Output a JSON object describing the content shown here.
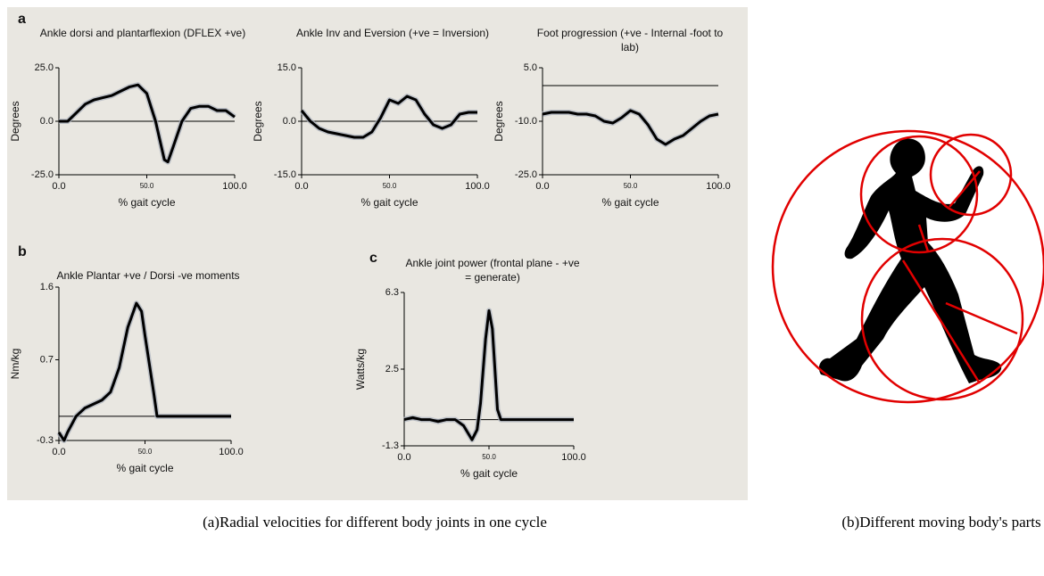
{
  "panel_labels": [
    "a",
    "b",
    "c"
  ],
  "chart_data": [
    {
      "type": "line",
      "title": [
        "Ankle dorsi and plantarflexion (DFLEX +ve)"
      ],
      "ylabel": "Degrees",
      "xlabel": "% gait cycle",
      "x": [
        0,
        5,
        10,
        15,
        20,
        25,
        30,
        35,
        40,
        45,
        50,
        55,
        60,
        62,
        65,
        70,
        75,
        80,
        85,
        90,
        95,
        100
      ],
      "values": [
        0,
        0,
        4,
        8,
        10,
        11,
        12,
        14,
        16,
        17,
        13,
        0,
        -18,
        -19,
        -12,
        0,
        6,
        7,
        7,
        5,
        5,
        2
      ],
      "color": "#000000",
      "zero_line": true,
      "xlim": [
        0,
        100
      ],
      "xticks": [
        {
          "value": 0,
          "label": "0.0"
        },
        {
          "value": 50,
          "label": "50.0"
        },
        {
          "value": 100,
          "label": "100.0"
        }
      ],
      "ylim": [
        -25,
        25
      ],
      "yticks": [
        {
          "value": 25,
          "label": "25.0"
        },
        {
          "value": 0,
          "label": "0.0"
        },
        {
          "value": -25,
          "label": "-25.0"
        }
      ]
    },
    {
      "type": "line",
      "title": [
        "Ankle Inv and Eversion (+ve = Inversion)"
      ],
      "ylabel": "Degrees",
      "xlabel": "% gait cycle",
      "x": [
        0,
        5,
        10,
        15,
        20,
        25,
        30,
        35,
        40,
        45,
        50,
        55,
        60,
        65,
        70,
        75,
        80,
        85,
        90,
        95,
        100
      ],
      "values": [
        3,
        0,
        -2,
        -3,
        -3.5,
        -4,
        -4.5,
        -4.5,
        -3,
        1,
        6,
        5,
        7,
        6,
        2,
        -1,
        -2,
        -1,
        2,
        2.5,
        2.5
      ],
      "color": "#000000",
      "zero_line": true,
      "xlim": [
        0,
        100
      ],
      "xticks": [
        {
          "value": 0,
          "label": "0.0"
        },
        {
          "value": 50,
          "label": "50.0"
        },
        {
          "value": 100,
          "label": "100.0"
        }
      ],
      "ylim": [
        -15,
        15
      ],
      "yticks": [
        {
          "value": 15,
          "label": "15.0"
        },
        {
          "value": 0,
          "label": "0.0"
        },
        {
          "value": -15,
          "label": "-15.0"
        }
      ]
    },
    {
      "type": "line",
      "title": [
        "Foot progression (+ve - Internal -foot to",
        "lab)"
      ],
      "ylabel": "Degrees",
      "xlabel": "% gait cycle",
      "x": [
        0,
        5,
        10,
        15,
        20,
        25,
        30,
        35,
        40,
        45,
        50,
        55,
        60,
        65,
        70,
        75,
        80,
        85,
        90,
        95,
        100
      ],
      "values": [
        -8,
        -7.5,
        -7.5,
        -7.5,
        -8,
        -8,
        -8.5,
        -10,
        -10.5,
        -9,
        -7,
        -8,
        -11,
        -15,
        -16.5,
        -15,
        -14,
        -12,
        -10,
        -8.5,
        -8
      ],
      "color": "#000000",
      "zero_line": true,
      "xlim": [
        0,
        100
      ],
      "xticks": [
        {
          "value": 0,
          "label": "0.0"
        },
        {
          "value": 50,
          "label": "50.0"
        },
        {
          "value": 100,
          "label": "100.0"
        }
      ],
      "ylim": [
        -25,
        5
      ],
      "yticks": [
        {
          "value": 5,
          "label": "5.0"
        },
        {
          "value": -10,
          "label": "-10.0"
        },
        {
          "value": -25,
          "label": "-25.0"
        }
      ]
    },
    {
      "type": "line",
      "title": [
        "Ankle Plantar +ve / Dorsi -ve moments"
      ],
      "ylabel": "Nm/kg",
      "xlabel": "% gait cycle",
      "x": [
        0,
        3,
        5,
        10,
        15,
        20,
        25,
        30,
        35,
        40,
        45,
        48,
        50,
        55,
        57,
        60,
        70,
        80,
        90,
        100
      ],
      "values": [
        -0.2,
        -0.3,
        -0.2,
        0,
        0.1,
        0.15,
        0.2,
        0.3,
        0.6,
        1.1,
        1.4,
        1.3,
        1.0,
        0.3,
        0,
        0,
        0,
        0,
        0,
        0
      ],
      "color": "#000000",
      "zero_line": true,
      "xlim": [
        0,
        100
      ],
      "xticks": [
        {
          "value": 0,
          "label": "0.0"
        },
        {
          "value": 50,
          "label": "50.0"
        },
        {
          "value": 100,
          "label": "100.0"
        }
      ],
      "ylim": [
        -0.3,
        1.6
      ],
      "yticks": [
        1.6,
        0.7,
        -0.3
      ]
    },
    {
      "type": "line",
      "title": [
        "Ankle joint power (frontal plane - +ve",
        "= generate)"
      ],
      "ylabel": "Watts/kg",
      "xlabel": "% gait cycle",
      "x": [
        0,
        5,
        10,
        15,
        20,
        25,
        30,
        35,
        40,
        43,
        45,
        48,
        50,
        52,
        55,
        57,
        60,
        70,
        80,
        90,
        100
      ],
      "values": [
        0,
        0.1,
        0,
        0,
        -0.1,
        0,
        0,
        -0.3,
        -1.0,
        -0.5,
        0.8,
        4,
        5.4,
        4.5,
        0.5,
        0,
        0,
        0,
        0,
        0,
        0
      ],
      "color": "#000000",
      "zero_line": true,
      "xlim": [
        0,
        100
      ],
      "xticks": [
        {
          "value": 0,
          "label": "0.0"
        },
        {
          "value": 50,
          "label": "50.0"
        },
        {
          "value": 100,
          "label": "100.0"
        }
      ],
      "ylim": [
        -1.3,
        6.3
      ],
      "yticks": [
        6.3,
        2.5,
        -1.3
      ]
    }
  ],
  "figure_captions": [
    "(a)Radial velocities for different body joints in one cycle",
    "(b)Different moving body's parts"
  ]
}
